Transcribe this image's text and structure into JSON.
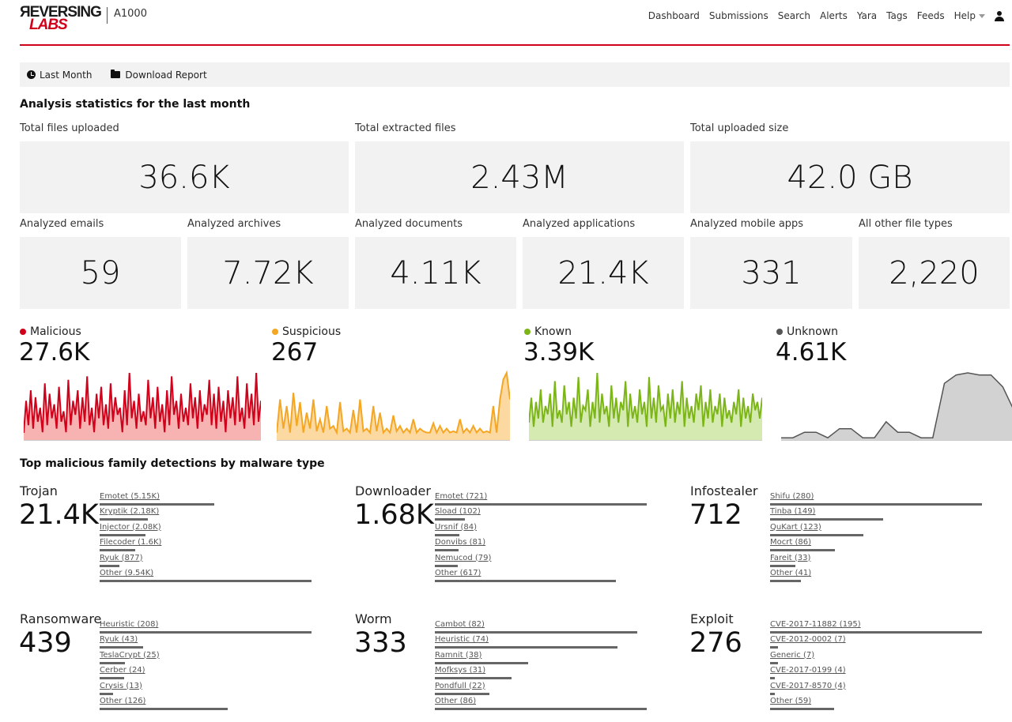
{
  "header": {
    "logo_line1": "ЯEVERSING",
    "logo_line2": "LABS",
    "product": "A1000",
    "nav": [
      "Dashboard",
      "Submissions",
      "Search",
      "Alerts",
      "Yara",
      "Tags",
      "Feeds",
      "Help"
    ]
  },
  "toolbar": {
    "period_label": "Last Month",
    "download_label": "Download Report"
  },
  "analysis": {
    "title": "Analysis statistics for the last month",
    "totals": [
      {
        "label": "Total files uploaded",
        "value": "36.6K"
      },
      {
        "label": "Total extracted files",
        "value": "2.43M"
      },
      {
        "label": "Total uploaded size",
        "value": "42.0 GB"
      }
    ],
    "types": [
      {
        "label": "Analyzed emails",
        "value": "59"
      },
      {
        "label": "Analyzed archives",
        "value": "7.72K"
      },
      {
        "label": "Analyzed documents",
        "value": "4.11K"
      },
      {
        "label": "Analyzed applications",
        "value": "21.4K"
      },
      {
        "label": "Analyzed mobile apps",
        "value": "331"
      },
      {
        "label": "All other file types",
        "value": "2,220"
      }
    ]
  },
  "verdicts": [
    {
      "label": "Malicious",
      "value": "27.6K",
      "color": "#d0021b",
      "fill": "#f7b2b2"
    },
    {
      "label": "Suspicious",
      "value": "267",
      "color": "#f5a623",
      "fill": "#fbd9a0"
    },
    {
      "label": "Known",
      "value": "3.39K",
      "color": "#7cb518",
      "fill": "#d4eab0"
    },
    {
      "label": "Unknown",
      "value": "4.61K",
      "color": "#555555",
      "fill": "#d2d2d2"
    }
  ],
  "chart_data": [
    {
      "type": "area",
      "name": "Malicious",
      "values": [
        9,
        55,
        20,
        70,
        15,
        60,
        25,
        45,
        10,
        80,
        20,
        65,
        30,
        50,
        15,
        75,
        25,
        40,
        10,
        85,
        20,
        55,
        35,
        70,
        15,
        60,
        25,
        90,
        20,
        45,
        10,
        65,
        30,
        75,
        20,
        50,
        15,
        80,
        25,
        60,
        35,
        45,
        10,
        70,
        20,
        95,
        30,
        55,
        15,
        65,
        25,
        40,
        20,
        85,
        30,
        60,
        15,
        75,
        25,
        50,
        10,
        70,
        20,
        90,
        35,
        55,
        15,
        65,
        25,
        45,
        20,
        80,
        30,
        60,
        15,
        70,
        25,
        50,
        35,
        85,
        20,
        65,
        15,
        75,
        25,
        55,
        10,
        70,
        30,
        60,
        20,
        90,
        25,
        45,
        15,
        80,
        30,
        65,
        20,
        95,
        25,
        55
      ]
    },
    {
      "type": "area",
      "name": "Suspicious",
      "values": [
        5,
        30,
        8,
        25,
        5,
        35,
        10,
        28,
        5,
        20,
        8,
        30,
        6,
        15,
        5,
        25,
        8,
        10,
        5,
        28,
        6,
        8,
        5,
        22,
        5,
        30,
        6,
        8,
        5,
        25,
        6,
        20,
        5,
        8,
        5,
        18,
        6,
        10,
        5,
        8,
        5,
        15,
        5,
        8,
        6,
        5,
        5,
        12,
        5,
        10,
        5,
        8,
        5,
        6,
        5,
        15,
        5,
        8,
        5,
        10,
        5,
        8,
        5,
        6,
        5,
        25,
        5,
        30,
        45,
        50,
        30
      ]
    },
    {
      "type": "area",
      "name": "Known",
      "values": [
        20,
        50,
        15,
        45,
        25,
        60,
        20,
        40,
        30,
        55,
        15,
        70,
        25,
        35,
        20,
        65,
        30,
        45,
        15,
        50,
        25,
        75,
        20,
        40,
        35,
        60,
        15,
        45,
        25,
        80,
        20,
        55,
        30,
        40,
        15,
        65,
        25,
        50,
        20,
        45,
        35,
        70,
        15,
        55,
        25,
        40,
        20,
        60,
        30,
        45,
        15,
        75,
        25,
        50,
        20,
        65,
        35,
        40,
        15,
        55,
        25,
        60,
        20,
        45,
        30,
        70,
        15,
        50,
        25,
        40,
        20,
        55,
        35,
        65,
        15,
        45,
        25,
        60,
        20,
        40,
        30,
        55,
        15,
        50,
        25,
        35,
        20,
        45,
        30,
        60,
        15,
        50,
        25,
        40,
        20,
        55,
        35,
        45,
        25,
        50
      ]
    },
    {
      "type": "area",
      "name": "Unknown",
      "values": [
        2,
        2,
        10,
        10,
        2,
        15,
        15,
        2,
        2,
        25,
        10,
        10,
        2,
        2,
        80,
        92,
        95,
        92,
        92,
        75,
        40
      ]
    }
  ],
  "families": {
    "title": "Top malicious family detections by malware type",
    "groups": [
      {
        "type": "Trojan",
        "total": "21.4K",
        "items": [
          {
            "label": "Emotet (5.15K)",
            "v": 5150
          },
          {
            "label": "Kryptik (2.18K)",
            "v": 2180
          },
          {
            "label": "Injector (2.08K)",
            "v": 2080
          },
          {
            "label": "Filecoder (1.6K)",
            "v": 1600
          },
          {
            "label": "Ryuk (877)",
            "v": 877
          },
          {
            "label": "Other (9.54K)",
            "v": 9540
          }
        ]
      },
      {
        "type": "Downloader",
        "total": "1.68K",
        "items": [
          {
            "label": "Emotet (721)",
            "v": 721
          },
          {
            "label": "Sload (102)",
            "v": 102
          },
          {
            "label": "Ursnif (84)",
            "v": 84
          },
          {
            "label": "Donvibs (81)",
            "v": 81
          },
          {
            "label": "Nemucod (79)",
            "v": 79
          },
          {
            "label": "Other (617)",
            "v": 617
          }
        ]
      },
      {
        "type": "Infostealer",
        "total": "712",
        "items": [
          {
            "label": "Shifu (280)",
            "v": 280
          },
          {
            "label": "Tinba (149)",
            "v": 149
          },
          {
            "label": "QuKart (123)",
            "v": 123
          },
          {
            "label": "Mocrt (86)",
            "v": 86
          },
          {
            "label": "Fareit (33)",
            "v": 33
          },
          {
            "label": "Other (41)",
            "v": 41
          }
        ]
      },
      {
        "type": "Ransomware",
        "total": "439",
        "items": [
          {
            "label": "Heuristic (208)",
            "v": 208
          },
          {
            "label": "Ryuk (43)",
            "v": 43
          },
          {
            "label": "TeslaCrypt (25)",
            "v": 25
          },
          {
            "label": "Cerber (24)",
            "v": 24
          },
          {
            "label": "Crysis (13)",
            "v": 13
          },
          {
            "label": "Other (126)",
            "v": 126
          }
        ]
      },
      {
        "type": "Worm",
        "total": "333",
        "items": [
          {
            "label": "Cambot (82)",
            "v": 82
          },
          {
            "label": "Heuristic (74)",
            "v": 74
          },
          {
            "label": "Ramnit (38)",
            "v": 38
          },
          {
            "label": "Mofksys (31)",
            "v": 31
          },
          {
            "label": "Pondfull (22)",
            "v": 22
          },
          {
            "label": "Other (86)",
            "v": 86
          }
        ]
      },
      {
        "type": "Exploit",
        "total": "276",
        "items": [
          {
            "label": "CVE-2017-11882 (195)",
            "v": 195
          },
          {
            "label": "CVE-2012-0002 (7)",
            "v": 7
          },
          {
            "label": "Generic (7)",
            "v": 7
          },
          {
            "label": "CVE-2017-0199 (4)",
            "v": 4
          },
          {
            "label": "CVE-2017-8570 (4)",
            "v": 4
          },
          {
            "label": "Other (59)",
            "v": 59
          }
        ]
      }
    ]
  }
}
